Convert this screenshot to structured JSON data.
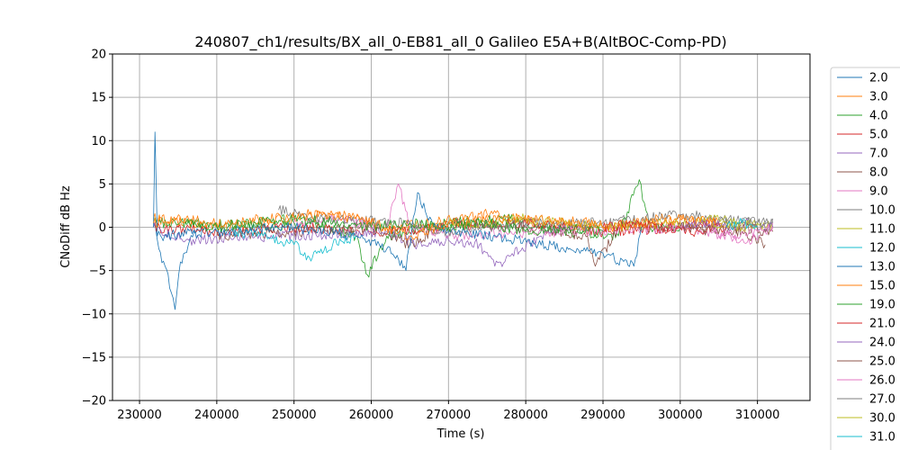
{
  "chart_data": {
    "type": "line",
    "title": "240807_ch1/results/BX_all_0-EB81_all_0 Galileo E5A+B(AltBOC-Comp-PD)",
    "xlabel": "Time (s)",
    "ylabel": "CNoDiff dB Hz",
    "xlim": [
      226500,
      316800
    ],
    "ylim": [
      -20,
      20
    ],
    "xticks": [
      230000,
      240000,
      250000,
      260000,
      270000,
      280000,
      290000,
      300000,
      310000
    ],
    "yticks": [
      -20,
      -15,
      -10,
      -5,
      0,
      5,
      10,
      15,
      20
    ],
    "grid": true,
    "legend_position": "outside-right",
    "series": [
      {
        "name": "2.0",
        "color": "#1f77b4",
        "x": [
          231800,
          232500,
          233300,
          234100,
          234600,
          235300,
          236500,
          238000
        ],
        "y": [
          0.5,
          -2.5,
          -4.5,
          -7.5,
          -9.5,
          -4.0,
          -1.5,
          0.0
        ]
      },
      {
        "name": "3.0",
        "color": "#ff7f0e",
        "x": [
          231800,
          240000,
          245000,
          252000,
          258000,
          262000,
          268000,
          275000,
          282000,
          290000,
          298000,
          305000
        ],
        "y": [
          1.0,
          0.0,
          0.5,
          1.5,
          1.0,
          0.0,
          0.5,
          1.5,
          0.5,
          0.0,
          1.0,
          0.5
        ]
      },
      {
        "name": "4.0",
        "color": "#2ca02c",
        "x": [
          231800,
          238000,
          245000,
          252000,
          258000,
          259500,
          262000,
          270000,
          278000,
          285000,
          292000,
          294700,
          296000,
          300000
        ],
        "y": [
          0.5,
          0.5,
          0.0,
          0.5,
          -1.0,
          -5.5,
          -1.0,
          0.5,
          1.0,
          -0.5,
          -1.0,
          5.5,
          0.0,
          0.0
        ]
      },
      {
        "name": "5.0",
        "color": "#d62728",
        "x": [
          231800,
          240000,
          250000,
          260000,
          270000,
          280000,
          290000,
          300000,
          305000
        ],
        "y": [
          0.0,
          -0.5,
          0.0,
          -0.5,
          0.0,
          0.5,
          -0.5,
          0.0,
          0.5
        ]
      },
      {
        "name": "7.0",
        "color": "#9467bd",
        "x": [
          231800,
          236000,
          262000,
          266000,
          270000,
          274000,
          276000,
          282000,
          286000
        ],
        "y": [
          0.0,
          -1.5,
          -0.5,
          -2.0,
          -1.5,
          -2.0,
          -4.5,
          -1.0,
          0.0
        ]
      },
      {
        "name": "8.0",
        "color": "#8c564b",
        "x": [
          240000,
          250000,
          260000,
          265000,
          270000,
          280000,
          288000,
          289000,
          292000,
          300000,
          308000,
          311000
        ],
        "y": [
          -1.0,
          -0.5,
          0.0,
          -2.0,
          0.5,
          0.0,
          -1.0,
          -4.5,
          0.0,
          0.0,
          -0.5,
          -2.0
        ]
      },
      {
        "name": "9.0",
        "color": "#e377c2",
        "x": [
          250000,
          256000,
          262000,
          263500,
          265000,
          270000,
          300000,
          305000,
          310000,
          312000
        ],
        "y": [
          0.5,
          1.0,
          0.0,
          5.0,
          0.0,
          -1.0,
          0.0,
          -1.0,
          -1.5,
          0.5
        ]
      },
      {
        "name": "10.0",
        "color": "#7f7f7f",
        "x": [
          248000,
          252000,
          265000,
          270000,
          275000,
          280000,
          290000,
          295000,
          300000,
          305000,
          310000,
          312000
        ],
        "y": [
          2.0,
          1.0,
          0.5,
          -0.5,
          0.0,
          0.5,
          0.5,
          1.0,
          1.5,
          1.0,
          0.5,
          0.5
        ]
      },
      {
        "name": "11.0",
        "color": "#bcbd22",
        "x": [
          270000,
          275000,
          280000,
          285000,
          290000,
          300000,
          305000,
          310000,
          312000
        ],
        "y": [
          0.5,
          0.5,
          1.0,
          0.5,
          0.0,
          0.5,
          1.0,
          0.5,
          0.0
        ]
      },
      {
        "name": "12.0",
        "color": "#17becf",
        "x": [
          242000,
          246000,
          250000,
          252000,
          255000,
          258000
        ],
        "y": [
          -0.5,
          -1.0,
          -2.0,
          -3.5,
          -2.0,
          -1.0
        ]
      },
      {
        "name": "13.0",
        "color": "#1f77b4",
        "x": [
          231800,
          232000,
          232300,
          240000,
          250000,
          258000,
          262000,
          264500,
          266000,
          268000,
          290000,
          294000,
          295000
        ],
        "y": [
          0.0,
          11.0,
          -1.0,
          -0.5,
          0.0,
          -1.0,
          -2.5,
          -5.0,
          4.0,
          0.0,
          -3.0,
          -4.5,
          0.0
        ]
      },
      {
        "name": "15.0",
        "color": "#ff7f0e",
        "x": [
          231800,
          236000,
          240000,
          246000,
          250000,
          255000,
          258000,
          262000,
          265000,
          270000,
          280000,
          288000,
          292000,
          300000,
          306000
        ],
        "y": [
          0.5,
          1.0,
          0.5,
          1.0,
          1.0,
          1.5,
          1.0,
          0.0,
          -1.0,
          0.5,
          1.0,
          0.5,
          0.0,
          1.0,
          0.5
        ]
      },
      {
        "name": "19.0",
        "color": "#2ca02c",
        "x": [
          236000,
          240000,
          245000,
          250000,
          255000,
          260000,
          265000,
          270000,
          275000,
          280000,
          285000,
          290000
        ],
        "y": [
          0.5,
          0.0,
          0.5,
          1.0,
          0.5,
          0.0,
          0.5,
          0.0,
          0.5,
          -0.5,
          0.0,
          -0.5
        ]
      },
      {
        "name": "21.0",
        "color": "#d62728",
        "x": [
          290000,
          294000,
          298000,
          302000,
          306000
        ],
        "y": [
          0.0,
          0.5,
          0.0,
          -0.5,
          0.0
        ]
      },
      {
        "name": "24.0",
        "color": "#9467bd",
        "x": [
          300000,
          303000,
          306000,
          309000,
          312000
        ],
        "y": [
          0.0,
          0.5,
          0.0,
          0.5,
          0.0
        ]
      },
      {
        "name": "25.0",
        "color": "#8c564b",
        "x": [
          300000,
          304000,
          308000,
          312000
        ],
        "y": [
          0.0,
          -0.5,
          0.0,
          -0.5
        ]
      },
      {
        "name": "26.0",
        "color": "#e377c2",
        "x": [
          304000,
          307000,
          310000,
          312000
        ],
        "y": [
          -0.5,
          -1.0,
          -0.5,
          0.0
        ]
      },
      {
        "name": "27.0",
        "color": "#7f7f7f",
        "x": [
          305000,
          308000,
          310000,
          312000
        ],
        "y": [
          0.5,
          1.0,
          0.5,
          1.0
        ]
      },
      {
        "name": "30.0",
        "color": "#bcbd22",
        "x": [
          304000,
          306000,
          308000,
          310000
        ],
        "y": [
          0.0,
          0.5,
          0.0,
          0.5
        ]
      },
      {
        "name": "31.0",
        "color": "#17becf",
        "x": [
          306000,
          308000,
          310000
        ],
        "y": [
          0.0,
          0.5,
          0.0
        ]
      }
    ]
  }
}
